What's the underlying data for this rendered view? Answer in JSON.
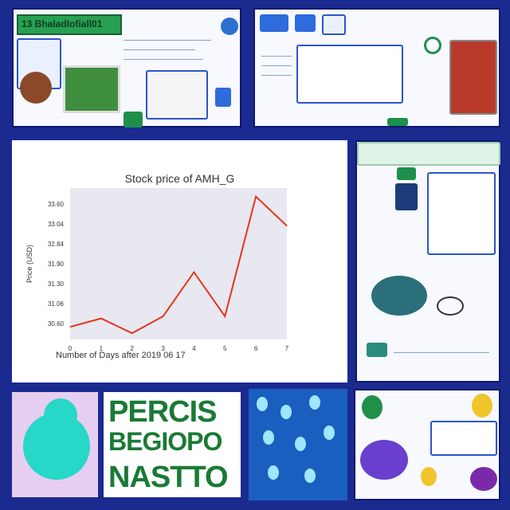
{
  "top_left_panel": {
    "header_text": "13 Bhaladlofiall01",
    "buttons": [
      "",
      "",
      "",
      ""
    ]
  },
  "chart": {
    "title": "Stock price of AMH_G",
    "xlabel": "Number of Days after 2019 06 17",
    "ylabel": "Price (USD)",
    "colors": {
      "line": "#e8331c",
      "plot_bg": "#e7e8f0"
    }
  },
  "chart_data": {
    "type": "line",
    "title": "Stock price of AMH_G",
    "xlabel": "Number of Days after 2019 06 17",
    "ylabel": "Price (USD)",
    "x": [
      0,
      1,
      2,
      3,
      4,
      5,
      6,
      7
    ],
    "y": [
      30.6,
      30.8,
      30.45,
      30.85,
      31.9,
      30.85,
      33.7,
      33.0
    ],
    "xticks": [
      "0",
      "1",
      "2",
      "3",
      "4",
      "5",
      "6",
      "7"
    ],
    "yticks": [
      "30.60",
      "31.06",
      "31.30",
      "31.90",
      "32.84",
      "33.04",
      "33.60"
    ],
    "ylim": [
      30.3,
      33.9
    ],
    "grid": false
  },
  "bottom_text": {
    "line1": "PERCIS",
    "line2": "BEGIOPO",
    "line3": "NASTTO"
  }
}
